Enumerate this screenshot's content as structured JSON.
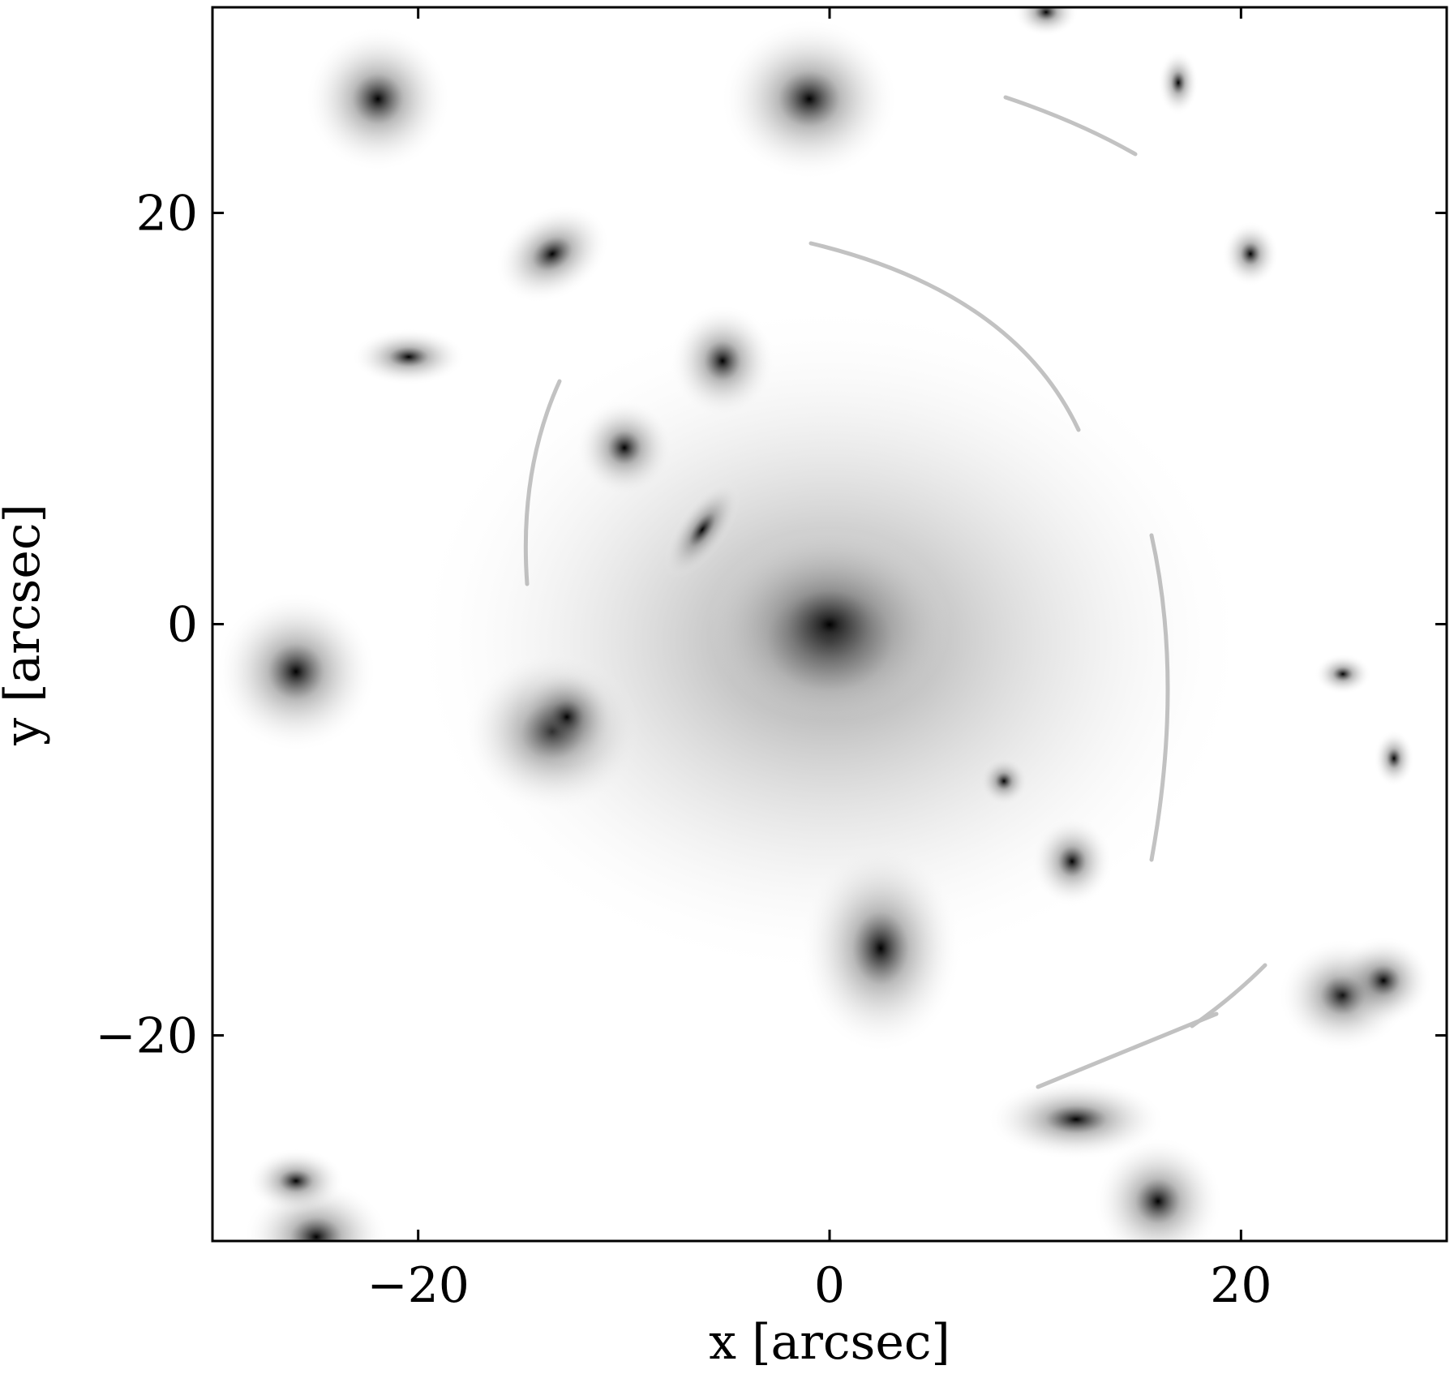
{
  "chart_data": {
    "type": "image",
    "xlabel": "x [arcsec]",
    "ylabel": "y [arcsec]",
    "xlim": [
      -30,
      30
    ],
    "ylim": [
      -30,
      30
    ],
    "xticks": [
      {
        "value": -20,
        "label": "−20"
      },
      0,
      20
    ],
    "yticks": [
      {
        "value": -20,
        "label": "−20"
      },
      0,
      20
    ],
    "colormap": "gray_r"
  }
}
